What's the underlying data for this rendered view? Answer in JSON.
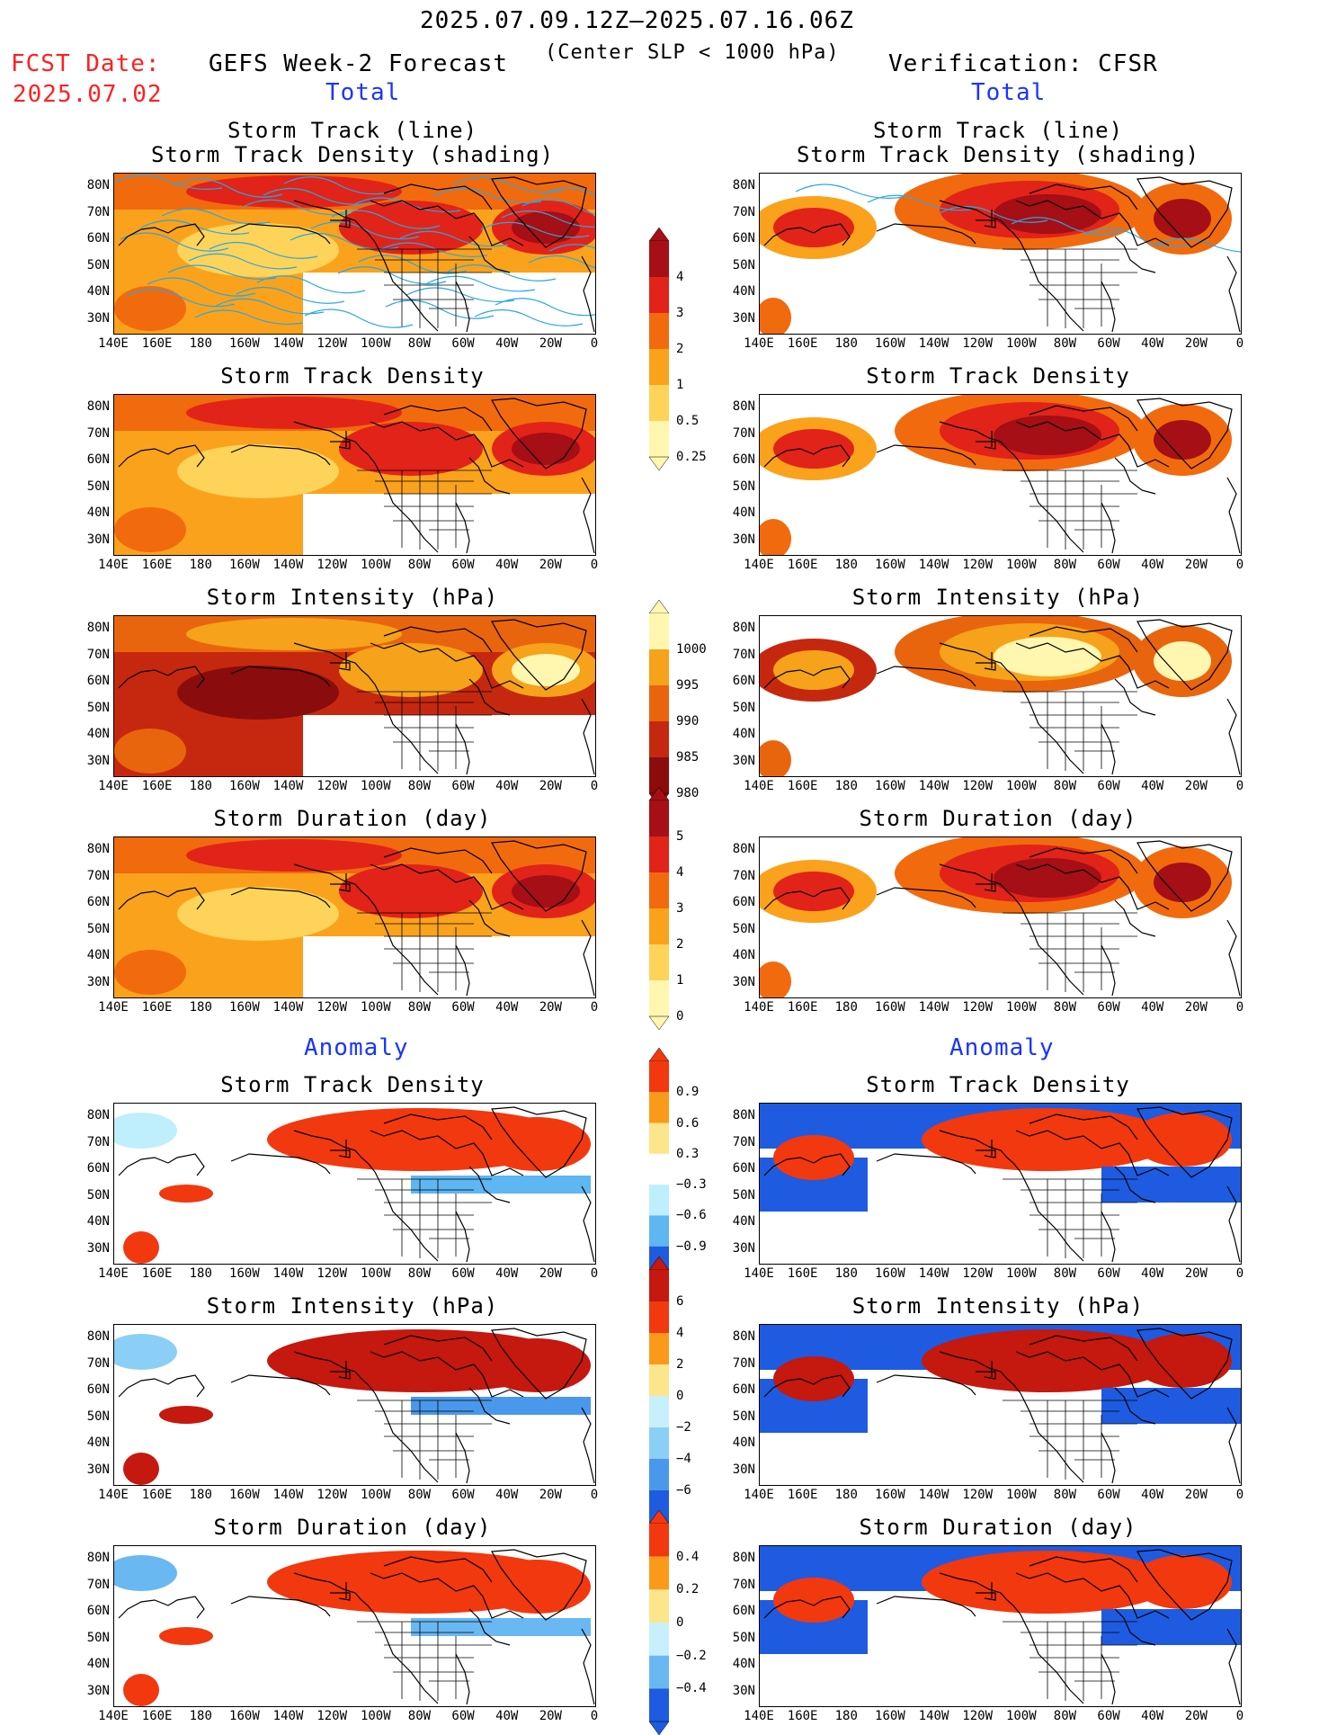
{
  "header": {
    "date_range": "2025.07.09.12Z–2025.07.16.06Z",
    "subtitle": "(Center SLP < 1000 hPa)",
    "fcst_label": "FCST Date:",
    "fcst_date": "2025.07.02",
    "left_title": "GEFS Week-2 Forecast",
    "right_title": "Verification: CFSR"
  },
  "sections": {
    "total": "Total",
    "anomaly": "Anomaly"
  },
  "panel_titles": {
    "track_line": "Storm Track (line)",
    "track_shading": "Storm Track Density (shading)",
    "track_density": "Storm Track Density",
    "intensity": "Storm Intensity (hPa)",
    "duration": "Storm Duration (day)"
  },
  "axes": {
    "lat_labels": [
      "80N",
      "70N",
      "60N",
      "50N",
      "40N",
      "30N"
    ],
    "lon_labels": [
      "140E",
      "160E",
      "180",
      "160W",
      "140W",
      "120W",
      "100W",
      "80W",
      "60W",
      "40W",
      "20W",
      "0"
    ]
  },
  "colorbars": {
    "density_total": {
      "labels": [
        "4",
        "3",
        "2",
        "1",
        "0.5",
        "0.25"
      ],
      "colors": [
        "#a50f15",
        "#e2231a",
        "#f26a0e",
        "#fba21c",
        "#fdd35a",
        "#fff6b0"
      ]
    },
    "intensity_total": {
      "labels": [
        "1000",
        "995",
        "990",
        "985",
        "980"
      ],
      "colors": [
        "#fff6b0",
        "#f6a21a",
        "#e8650e",
        "#c5280f",
        "#8b0c0c"
      ]
    },
    "duration_total": {
      "labels": [
        "5",
        "4",
        "3",
        "2",
        "1",
        "0"
      ],
      "colors": [
        "#a50f15",
        "#e2231a",
        "#f26a0e",
        "#fba21c",
        "#fdd35a",
        "#fff6b0"
      ]
    },
    "density_anom": {
      "labels": [
        "0.9",
        "0.6",
        "0.3",
        "−0.3",
        "−0.6",
        "−0.9"
      ],
      "colors": [
        "#f2380f",
        "#fb9a1a",
        "#fde58c",
        "#ffffff",
        "#bfeefc",
        "#5eb6f2",
        "#1e5be0"
      ]
    },
    "intensity_anom": {
      "labels": [
        "6",
        "4",
        "2",
        "0",
        "−2",
        "−4",
        "−6"
      ],
      "colors": [
        "#c5180f",
        "#f2380f",
        "#fb9a1a",
        "#fde58c",
        "#c8f0fc",
        "#8ccff6",
        "#4a98ec",
        "#1e5be0"
      ]
    },
    "duration_anom": {
      "labels": [
        "0.4",
        "0.2",
        "0",
        "−0.2",
        "−0.4"
      ],
      "colors": [
        "#f2380f",
        "#fb9a1a",
        "#fde58c",
        "#c8f0fc",
        "#6ab8f2",
        "#1e5be0"
      ]
    }
  },
  "palette": {
    "ocean_total_forecast": "#f6a31c",
    "high_density": "#d9280f",
    "extreme_density": "#a50f15",
    "pale_yellow": "#fff6b0",
    "anom_blue": "#1e5be0",
    "anom_light_blue": "#c8f0fc",
    "anom_red": "#f2380f",
    "track_line": "#2aa7e0",
    "fcst_red": "#ff2020",
    "section_blue": "#1a35ff"
  }
}
